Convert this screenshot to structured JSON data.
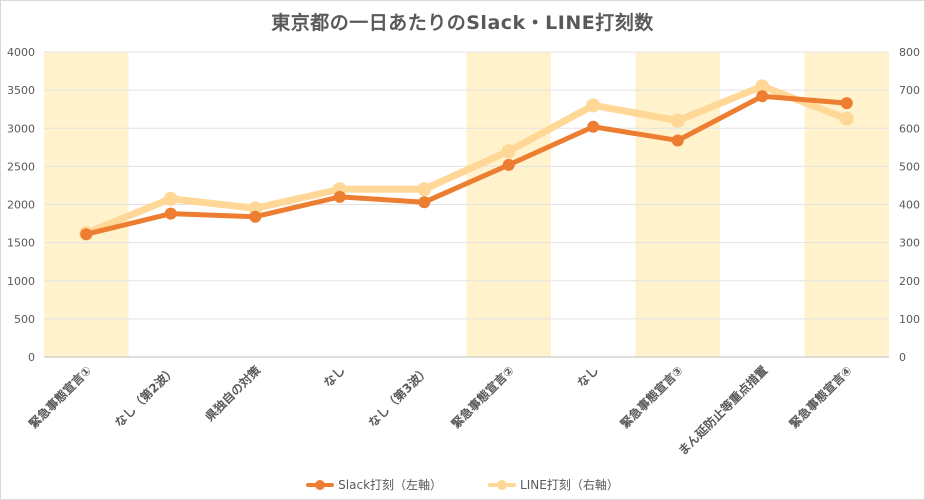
{
  "chart_data": {
    "type": "line",
    "title": "東京都の一日あたりのSlack・LINE打刻数",
    "categories": [
      "緊急事態宣言①",
      "なし（第2波）",
      "県独自の対策",
      "なし",
      "なし（第3波）",
      "緊急事態宣言②",
      "なし",
      "緊急事態宣言③",
      "まん延防止等重点措置",
      "緊急事態宣言④"
    ],
    "highlighted_categories": [
      0,
      5,
      7,
      9
    ],
    "highlight_color": "#fff2cc",
    "y_left": {
      "min": 0,
      "max": 4000,
      "step": 500,
      "ticks": [
        "0",
        "500",
        "1000",
        "1500",
        "2000",
        "2500",
        "3000",
        "3500",
        "4000"
      ]
    },
    "y_right": {
      "min": 0,
      "max": 800,
      "step": 100,
      "ticks": [
        "0",
        "100",
        "200",
        "300",
        "400",
        "500",
        "600",
        "700",
        "800"
      ]
    },
    "grid": true,
    "legend_position": "bottom",
    "series": [
      {
        "name": "Slack打刻（左軸）",
        "axis": "left",
        "color": "#ed7d31",
        "values": [
          1610,
          1880,
          1840,
          2100,
          2030,
          2520,
          3020,
          2840,
          3420,
          3330
        ]
      },
      {
        "name": "LINE打刻（右軸）",
        "axis": "right",
        "color": "#ffd898",
        "values": [
          325,
          415,
          390,
          440,
          440,
          540,
          660,
          620,
          710,
          625
        ]
      }
    ]
  }
}
